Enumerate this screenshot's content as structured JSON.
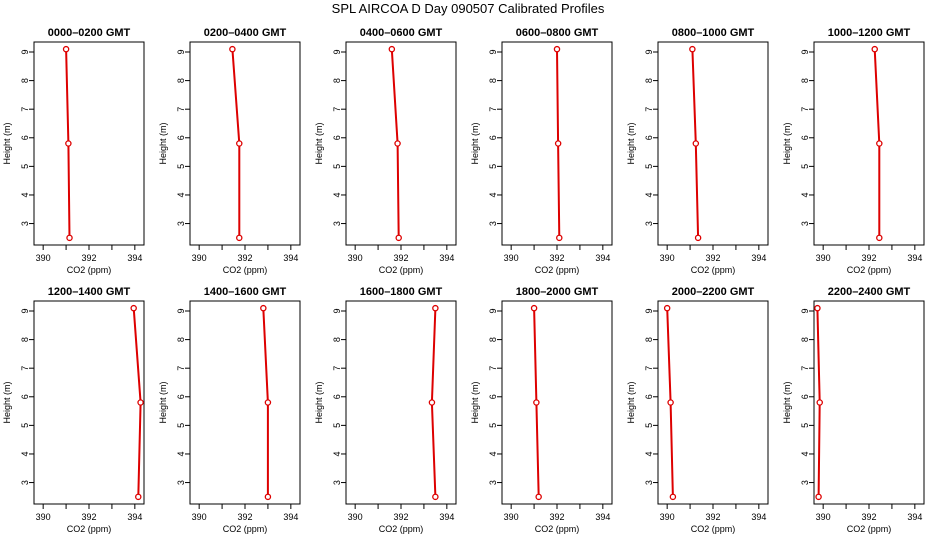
{
  "title": "SPL AIRCOA D  Day 090507  Calibrated Profiles",
  "colors": {
    "series": "#dd0000",
    "axis": "#000000",
    "background": "#ffffff"
  },
  "chart_data": [
    {
      "type": "line",
      "title": "0000–0200 GMT",
      "xlabel": "CO2 (ppm)",
      "ylabel": "Height (m)",
      "xlim": [
        389.6,
        394.4
      ],
      "ylim": [
        2.25,
        9.35
      ],
      "xticks": [
        390,
        392,
        394
      ],
      "xminor": [
        391,
        393
      ],
      "yticks": [
        3,
        4,
        5,
        6,
        7,
        8,
        9
      ],
      "series": [
        {
          "x": [
            391.0,
            391.1,
            391.15
          ],
          "y": [
            9.1,
            5.8,
            2.5
          ]
        }
      ]
    },
    {
      "type": "line",
      "title": "0200–0400 GMT",
      "xlabel": "CO2 (ppm)",
      "ylabel": "Height (m)",
      "xlim": [
        389.6,
        394.4
      ],
      "ylim": [
        2.25,
        9.35
      ],
      "xticks": [
        390,
        392,
        394
      ],
      "xminor": [
        391,
        393
      ],
      "yticks": [
        3,
        4,
        5,
        6,
        7,
        8,
        9
      ],
      "series": [
        {
          "x": [
            391.45,
            391.75,
            391.75
          ],
          "y": [
            9.1,
            5.8,
            2.5
          ]
        }
      ]
    },
    {
      "type": "line",
      "title": "0400–0600 GMT",
      "xlabel": "CO2 (ppm)",
      "ylabel": "Height (m)",
      "xlim": [
        389.6,
        394.4
      ],
      "ylim": [
        2.25,
        9.35
      ],
      "xticks": [
        390,
        392,
        394
      ],
      "xminor": [
        391,
        393
      ],
      "yticks": [
        3,
        4,
        5,
        6,
        7,
        8,
        9
      ],
      "series": [
        {
          "x": [
            391.6,
            391.85,
            391.9
          ],
          "y": [
            9.1,
            5.8,
            2.5
          ]
        }
      ]
    },
    {
      "type": "line",
      "title": "0600–0800 GMT",
      "xlabel": "CO2 (ppm)",
      "ylabel": "Height (m)",
      "xlim": [
        389.6,
        394.4
      ],
      "ylim": [
        2.25,
        9.35
      ],
      "xticks": [
        390,
        392,
        394
      ],
      "xminor": [
        391,
        393
      ],
      "yticks": [
        3,
        4,
        5,
        6,
        7,
        8,
        9
      ],
      "series": [
        {
          "x": [
            392.0,
            392.05,
            392.1
          ],
          "y": [
            9.1,
            5.8,
            2.5
          ]
        }
      ]
    },
    {
      "type": "line",
      "title": "0800–1000 GMT",
      "xlabel": "CO2 (ppm)",
      "ylabel": "Height (m)",
      "xlim": [
        389.6,
        394.4
      ],
      "ylim": [
        2.25,
        9.35
      ],
      "xticks": [
        390,
        392,
        394
      ],
      "xminor": [
        391,
        393
      ],
      "yticks": [
        3,
        4,
        5,
        6,
        7,
        8,
        9
      ],
      "series": [
        {
          "x": [
            391.1,
            391.25,
            391.35
          ],
          "y": [
            9.1,
            5.8,
            2.5
          ]
        }
      ]
    },
    {
      "type": "line",
      "title": "1000–1200 GMT",
      "xlabel": "CO2 (ppm)",
      "ylabel": "Height (m)",
      "xlim": [
        389.6,
        394.4
      ],
      "ylim": [
        2.25,
        9.35
      ],
      "xticks": [
        390,
        392,
        394
      ],
      "xminor": [
        391,
        393
      ],
      "yticks": [
        3,
        4,
        5,
        6,
        7,
        8,
        9
      ],
      "series": [
        {
          "x": [
            392.25,
            392.45,
            392.45
          ],
          "y": [
            9.1,
            5.8,
            2.5
          ]
        }
      ]
    },
    {
      "type": "line",
      "title": "1200–1400 GMT",
      "xlabel": "CO2 (ppm)",
      "ylabel": "Height (m)",
      "xlim": [
        389.6,
        394.4
      ],
      "ylim": [
        2.25,
        9.35
      ],
      "xticks": [
        390,
        392,
        394
      ],
      "xminor": [
        391,
        393
      ],
      "yticks": [
        3,
        4,
        5,
        6,
        7,
        8,
        9
      ],
      "series": [
        {
          "x": [
            393.95,
            394.25,
            394.15
          ],
          "y": [
            9.1,
            5.8,
            2.5
          ]
        }
      ]
    },
    {
      "type": "line",
      "title": "1400–1600 GMT",
      "xlabel": "CO2 (ppm)",
      "ylabel": "Height (m)",
      "xlim": [
        389.6,
        394.4
      ],
      "ylim": [
        2.25,
        9.35
      ],
      "xticks": [
        390,
        392,
        394
      ],
      "xminor": [
        391,
        393
      ],
      "yticks": [
        3,
        4,
        5,
        6,
        7,
        8,
        9
      ],
      "series": [
        {
          "x": [
            392.8,
            393.0,
            393.0
          ],
          "y": [
            9.1,
            5.8,
            2.5
          ]
        }
      ]
    },
    {
      "type": "line",
      "title": "1600–1800 GMT",
      "xlabel": "CO2 (ppm)",
      "ylabel": "Height (m)",
      "xlim": [
        389.6,
        394.4
      ],
      "ylim": [
        2.25,
        9.35
      ],
      "xticks": [
        390,
        392,
        394
      ],
      "xminor": [
        391,
        393
      ],
      "yticks": [
        3,
        4,
        5,
        6,
        7,
        8,
        9
      ],
      "series": [
        {
          "x": [
            393.5,
            393.35,
            393.5
          ],
          "y": [
            9.1,
            5.8,
            2.5
          ]
        }
      ]
    },
    {
      "type": "line",
      "title": "1800–2000 GMT",
      "xlabel": "CO2 (ppm)",
      "ylabel": "Height (m)",
      "xlim": [
        389.6,
        394.4
      ],
      "ylim": [
        2.25,
        9.35
      ],
      "xticks": [
        390,
        392,
        394
      ],
      "xminor": [
        391,
        393
      ],
      "yticks": [
        3,
        4,
        5,
        6,
        7,
        8,
        9
      ],
      "series": [
        {
          "x": [
            391.0,
            391.1,
            391.2
          ],
          "y": [
            9.1,
            5.8,
            2.5
          ]
        }
      ]
    },
    {
      "type": "line",
      "title": "2000–2200 GMT",
      "xlabel": "CO2 (ppm)",
      "ylabel": "Height (m)",
      "xlim": [
        389.6,
        394.4
      ],
      "ylim": [
        2.25,
        9.35
      ],
      "xticks": [
        390,
        392,
        394
      ],
      "xminor": [
        391,
        393
      ],
      "yticks": [
        3,
        4,
        5,
        6,
        7,
        8,
        9
      ],
      "series": [
        {
          "x": [
            390.0,
            390.15,
            390.25
          ],
          "y": [
            9.1,
            5.8,
            2.5
          ]
        }
      ]
    },
    {
      "type": "line",
      "title": "2200–2400 GMT",
      "xlabel": "CO2 (ppm)",
      "ylabel": "Height (m)",
      "xlim": [
        389.6,
        394.4
      ],
      "ylim": [
        2.25,
        9.35
      ],
      "xticks": [
        390,
        392,
        394
      ],
      "xminor": [
        391,
        393
      ],
      "yticks": [
        3,
        4,
        5,
        6,
        7,
        8,
        9
      ],
      "series": [
        {
          "x": [
            389.75,
            389.85,
            389.8
          ],
          "y": [
            9.1,
            5.8,
            2.5
          ]
        }
      ]
    }
  ]
}
